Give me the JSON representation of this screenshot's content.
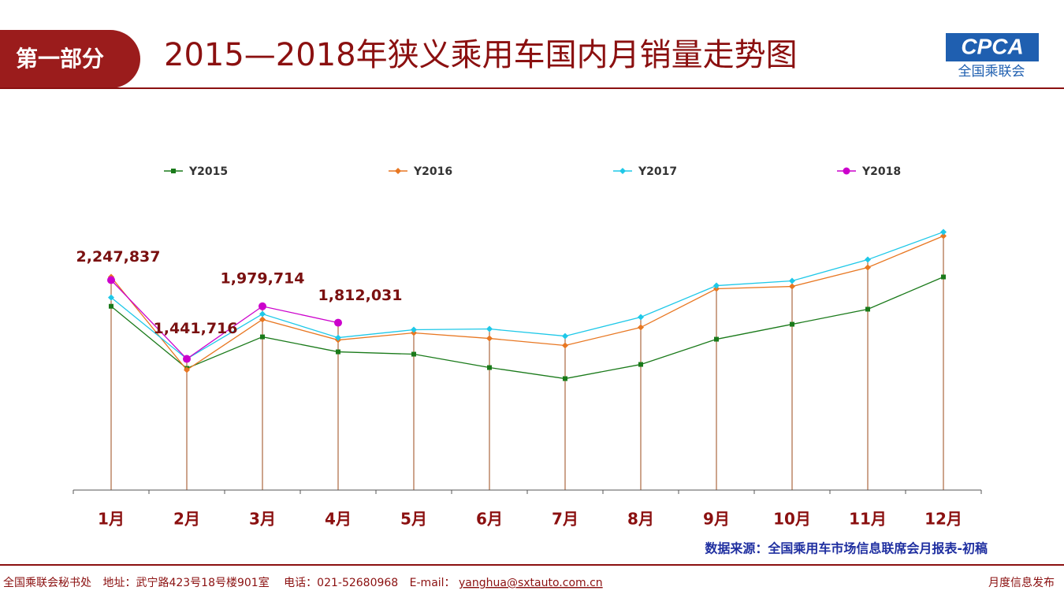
{
  "header": {
    "section": "第一部分",
    "logo_main": "CPCA",
    "logo_sub": "全国乘联会"
  },
  "chart_data": {
    "type": "line",
    "title": "2015—2018年狭义乘用车国内月销量走势图",
    "categories": [
      "1月",
      "2月",
      "3月",
      "4月",
      "5月",
      "6月",
      "7月",
      "8月",
      "9月",
      "10月",
      "11月",
      "12月"
    ],
    "series": [
      {
        "name": "Y2015",
        "color": "#1a7a1a",
        "marker": "square",
        "values": [
          1980000,
          1345000,
          1667000,
          1514000,
          1490000,
          1353000,
          1240000,
          1385000,
          1643000,
          1796000,
          1950000,
          2280000
        ]
      },
      {
        "name": "Y2016",
        "color": "#e87722",
        "marker": "diamond",
        "values": [
          2280000,
          1329000,
          1845000,
          1635000,
          1708000,
          1651000,
          1579000,
          1764000,
          2159000,
          2183000,
          2377000,
          2699000
        ]
      },
      {
        "name": "Y2017",
        "color": "#1ec8e8",
        "marker": "diamond",
        "values": [
          2070000,
          1442000,
          1901000,
          1659000,
          1740000,
          1748000,
          1675000,
          1869000,
          2191000,
          2240000,
          2457000,
          2740000
        ]
      },
      {
        "name": "Y2018",
        "color": "#cc00cc",
        "marker": "circle",
        "values": [
          2247837,
          1441716,
          1979714,
          1812031,
          null,
          null,
          null,
          null,
          null,
          null,
          null,
          null
        ],
        "value_labels": [
          "2,247,837",
          "1,441,716",
          "1,979,714",
          "1,812,031",
          null,
          null,
          null,
          null,
          null,
          null,
          null,
          null
        ]
      }
    ],
    "ylim": [
      100000,
      2800000
    ],
    "legend": "top",
    "source": "数据来源：全国乘用车市场信息联席会月报表-初稿"
  },
  "footer": {
    "org": "全国乘联会秘书处",
    "address": "地址：武宁路423号18号楼901室",
    "phone": "电话：021-52680968",
    "email_label": "E-mail：",
    "email": "yanghua@sxtauto.com.cn",
    "right": "月度信息发布"
  }
}
